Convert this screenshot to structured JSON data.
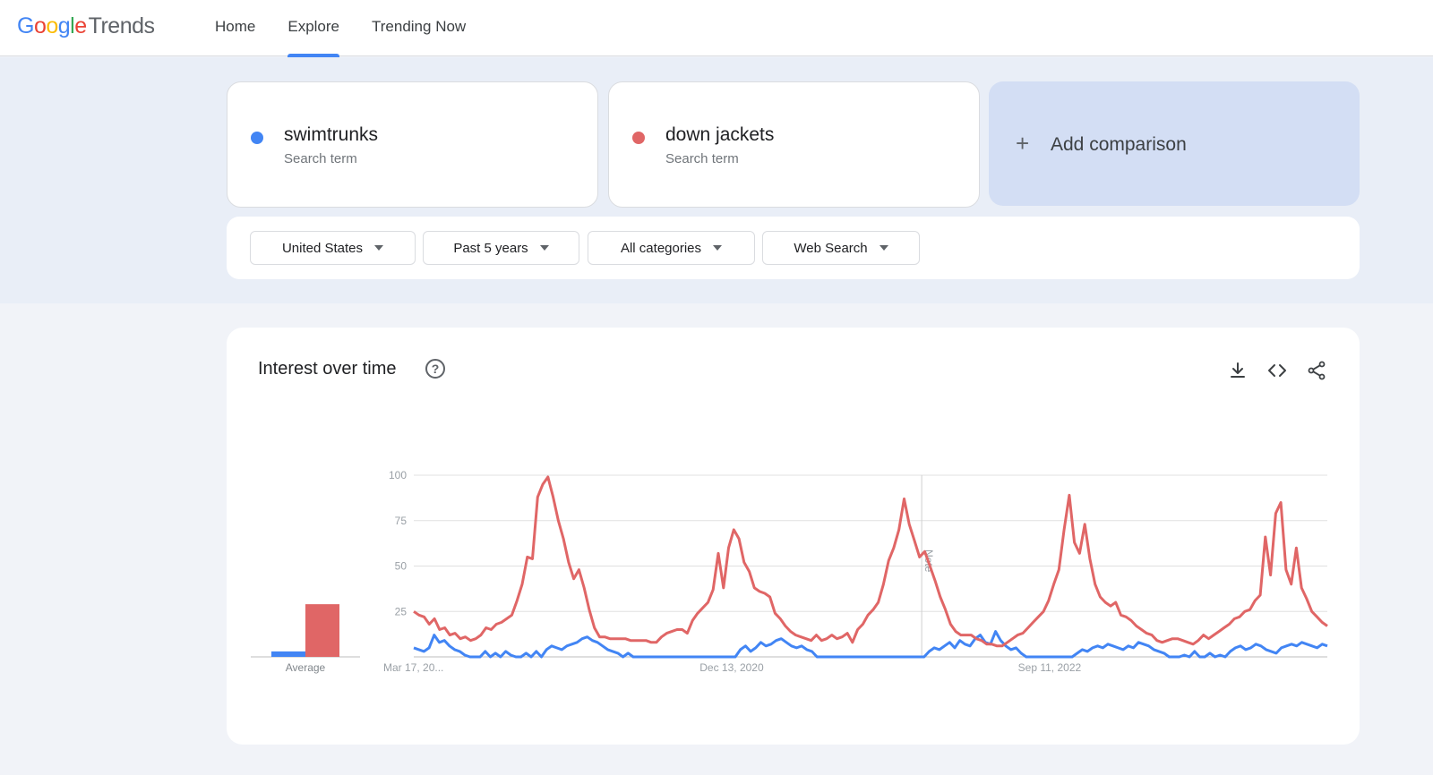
{
  "header": {
    "logo_google": [
      "G",
      "o",
      "o",
      "g",
      "l",
      "e"
    ],
    "logo_product": "Trends",
    "nav": [
      {
        "label": "Home",
        "active": false
      },
      {
        "label": "Explore",
        "active": true
      },
      {
        "label": "Trending Now",
        "active": false
      }
    ]
  },
  "terms": [
    {
      "name": "swimtrunks",
      "type": "Search term",
      "color": "#4285f4"
    },
    {
      "name": "down jackets",
      "type": "Search term",
      "color": "#e06666"
    }
  ],
  "add_comparison": {
    "icon": "plus-icon",
    "label": "Add comparison"
  },
  "filters": [
    {
      "label": "United States"
    },
    {
      "label": "Past 5 years"
    },
    {
      "label": "All categories"
    },
    {
      "label": "Web Search"
    }
  ],
  "panel": {
    "title": "Interest over time",
    "help_icon": "help-circle-icon",
    "toolbar": [
      "download-icon",
      "embed-code-icon",
      "share-icon"
    ],
    "average_label": "Average",
    "note_label": "Note"
  },
  "colors": {
    "swimtrunks": "#4285f4",
    "down_jackets": "#e06666",
    "accent": "#4285f4"
  },
  "chart_data": {
    "type": "line",
    "title": "Interest over time",
    "xlabel": "",
    "ylabel": "",
    "ylim": [
      0,
      100
    ],
    "yticks": [
      25,
      50,
      75,
      100
    ],
    "xtick_labels": [
      "Mar 17, 20...",
      "Dec 13, 2020",
      "Sep 11, 2022"
    ],
    "xtick_positions": [
      0,
      0.348,
      0.696
    ],
    "note_position": 0.556,
    "grid": true,
    "legend": [
      "swimtrunks",
      "down jackets"
    ],
    "averages": {
      "swimtrunks": 3,
      "down jackets": 29
    },
    "x_step": "2 weeks",
    "series": [
      {
        "name": "down jackets",
        "color": "#e06666",
        "values": [
          25,
          23,
          22,
          18,
          21,
          15,
          16,
          12,
          13,
          10,
          11,
          9,
          10,
          12,
          16,
          15,
          18,
          19,
          21,
          23,
          31,
          40,
          55,
          54,
          88,
          95,
          99,
          88,
          75,
          65,
          52,
          43,
          48,
          38,
          26,
          16,
          11,
          11,
          10,
          10,
          10,
          10,
          9,
          9,
          9,
          9,
          8,
          8,
          11,
          13,
          14,
          15,
          15,
          13,
          20,
          24,
          27,
          30,
          37,
          57,
          38,
          60,
          70,
          65,
          52,
          47,
          38,
          36,
          35,
          33,
          24,
          21,
          17,
          14,
          12,
          11,
          10,
          9,
          12,
          9,
          10,
          12,
          10,
          11,
          13,
          8,
          15,
          18,
          23,
          26,
          30,
          40,
          53,
          60,
          70,
          87,
          73,
          64,
          55,
          58,
          50,
          42,
          33,
          26,
          18,
          14,
          12,
          12,
          12,
          10,
          9,
          7,
          7,
          6,
          6,
          8,
          10,
          12,
          13,
          16,
          19,
          22,
          25,
          31,
          40,
          48,
          70,
          89,
          63,
          57,
          73,
          54,
          40,
          33,
          30,
          28,
          30,
          23,
          22,
          20,
          17,
          15,
          13,
          12,
          9,
          8,
          9,
          10,
          10,
          9,
          8,
          7,
          9,
          12,
          10,
          12,
          14,
          16,
          18,
          21,
          22,
          25,
          26,
          31,
          34,
          66,
          45,
          79,
          85,
          48,
          40,
          60,
          38,
          32,
          25,
          22,
          19,
          17
        ]
      },
      {
        "name": "swimtrunks",
        "color": "#4285f4",
        "values": [
          5,
          4,
          3,
          5,
          12,
          8,
          9,
          6,
          4,
          3,
          1,
          0,
          0,
          0,
          3,
          0,
          2,
          0,
          3,
          1,
          0,
          0,
          2,
          0,
          3,
          0,
          4,
          6,
          5,
          4,
          6,
          7,
          8,
          10,
          11,
          9,
          8,
          6,
          4,
          3,
          2,
          0,
          2,
          0,
          0,
          0,
          0,
          0,
          0,
          0,
          0,
          0,
          0,
          0,
          0,
          0,
          0,
          0,
          0,
          0,
          0,
          0,
          0,
          0,
          4,
          6,
          3,
          5,
          8,
          6,
          7,
          9,
          10,
          8,
          6,
          5,
          6,
          4,
          3,
          0,
          0,
          0,
          0,
          0,
          0,
          0,
          0,
          0,
          0,
          0,
          0,
          0,
          0,
          0,
          0,
          0,
          0,
          0,
          0,
          0,
          0,
          3,
          5,
          4,
          6,
          8,
          5,
          9,
          7,
          6,
          10,
          12,
          8,
          7,
          14,
          9,
          6,
          4,
          5,
          2,
          0,
          0,
          0,
          0,
          0,
          0,
          0,
          0,
          0,
          0,
          2,
          4,
          3,
          5,
          6,
          5,
          7,
          6,
          5,
          4,
          6,
          5,
          8,
          7,
          6,
          4,
          3,
          2,
          0,
          0,
          0,
          1,
          0,
          3,
          0,
          0,
          2,
          0,
          1,
          0,
          3,
          5,
          6,
          4,
          5,
          7,
          6,
          4,
          3,
          2,
          5,
          6,
          7,
          6,
          8,
          7,
          6,
          5,
          7,
          6
        ]
      }
    ]
  }
}
